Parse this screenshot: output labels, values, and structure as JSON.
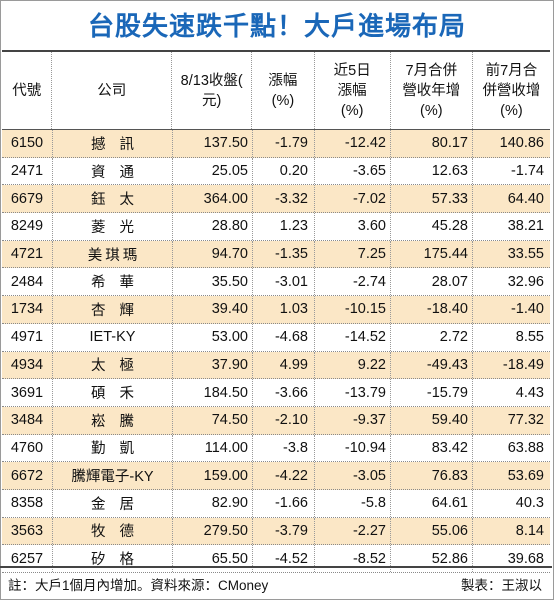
{
  "title": "台股失速跌千點！大戶進場布局",
  "headers": [
    "代號",
    "公司",
    "8/13收盤(\n元)",
    "漲幅\n(%)",
    "近5日\n漲幅\n(%)",
    "7月合併\n營收年增\n(%)",
    "前7月合\n併營收增\n(%)"
  ],
  "rows": [
    [
      "6150",
      "撼訊",
      "137.50",
      "-1.79",
      "-12.42",
      "80.17",
      "140.86"
    ],
    [
      "2471",
      "資通",
      "25.05",
      "0.20",
      "-3.65",
      "12.63",
      "-1.74"
    ],
    [
      "6679",
      "鈺太",
      "364.00",
      "-3.32",
      "-7.02",
      "57.33",
      "64.40"
    ],
    [
      "8249",
      "菱光",
      "28.80",
      "1.23",
      "3.60",
      "45.28",
      "38.21"
    ],
    [
      "4721",
      "美琪瑪",
      "94.70",
      "-1.35",
      "7.25",
      "175.44",
      "33.55"
    ],
    [
      "2484",
      "希華",
      "35.50",
      "-3.01",
      "-2.74",
      "28.07",
      "32.96"
    ],
    [
      "1734",
      "杏輝",
      "39.40",
      "1.03",
      "-10.15",
      "-18.40",
      "-1.40"
    ],
    [
      "4971",
      "IET-KY",
      "53.00",
      "-4.68",
      "-14.52",
      "2.72",
      "8.55"
    ],
    [
      "4934",
      "太極",
      "37.90",
      "4.99",
      "9.22",
      "-49.43",
      "-18.49"
    ],
    [
      "3691",
      "碩禾",
      "184.50",
      "-3.66",
      "-13.79",
      "-15.79",
      "4.43"
    ],
    [
      "3484",
      "崧騰",
      "74.50",
      "-2.10",
      "-9.37",
      "59.40",
      "77.32"
    ],
    [
      "4760",
      "勤凱",
      "114.00",
      "-3.8",
      "-10.94",
      "83.42",
      "63.88"
    ],
    [
      "6672",
      "騰輝電子-KY",
      "159.00",
      "-4.22",
      "-3.05",
      "76.83",
      "53.69"
    ],
    [
      "8358",
      "金居",
      "82.90",
      "-1.66",
      "-5.8",
      "64.61",
      "40.3"
    ],
    [
      "3563",
      "牧德",
      "279.50",
      "-3.79",
      "-2.27",
      "55.06",
      "8.14"
    ],
    [
      "6257",
      "矽格",
      "65.50",
      "-4.52",
      "-8.52",
      "52.86",
      "39.68"
    ]
  ],
  "footer": {
    "note": "註：大戶1個月內增加。資料來源：CMoney",
    "credit": "製表：王淑以"
  },
  "colors": {
    "title": "#1a67b8",
    "row_highlight": "#fbe7c6"
  }
}
